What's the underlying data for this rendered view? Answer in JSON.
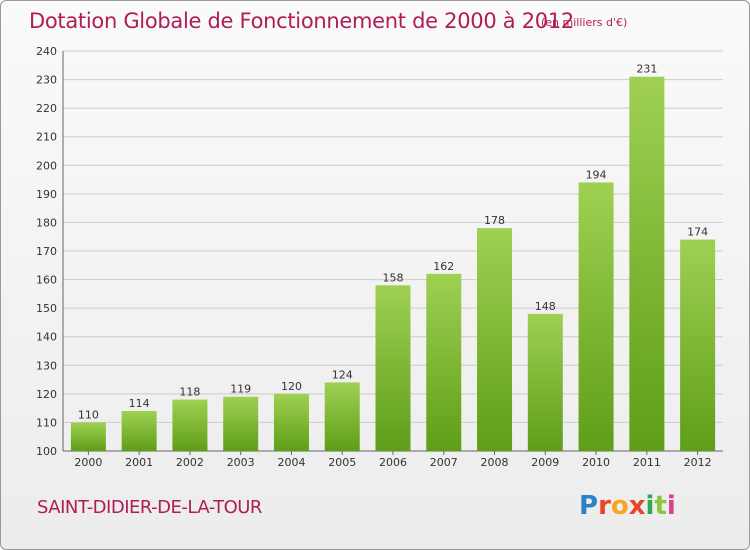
{
  "title": "Dotation Globale de Fonctionnement de 2000 à 2012",
  "unit_note": "(en milliers d'€)",
  "commune": "SAINT-DIDIER-DE-LA-TOUR",
  "logo": {
    "text": "Proxiti",
    "letters": [
      "P",
      "r",
      "o",
      "x",
      "i",
      "t",
      "i"
    ]
  },
  "colors": {
    "title": "#b01d56",
    "bar_top": "#9fd052",
    "bar_bottom": "#5e9e18",
    "grid": "#cccccc"
  },
  "chart_data": {
    "type": "bar",
    "title": "Dotation Globale de Fonctionnement de 2000 à 2012",
    "subtitle": "(en milliers d'€)",
    "xlabel": "",
    "ylabel": "",
    "categories": [
      "2000",
      "2001",
      "2002",
      "2003",
      "2004",
      "2005",
      "2006",
      "2007",
      "2008",
      "2009",
      "2010",
      "2011",
      "2012"
    ],
    "values": [
      110,
      114,
      118,
      119,
      120,
      124,
      158,
      162,
      178,
      148,
      194,
      231,
      174
    ],
    "ylim": [
      100,
      240
    ],
    "yticks": [
      100,
      110,
      120,
      130,
      140,
      150,
      160,
      170,
      180,
      190,
      200,
      210,
      220,
      230,
      240
    ],
    "grid": true
  }
}
